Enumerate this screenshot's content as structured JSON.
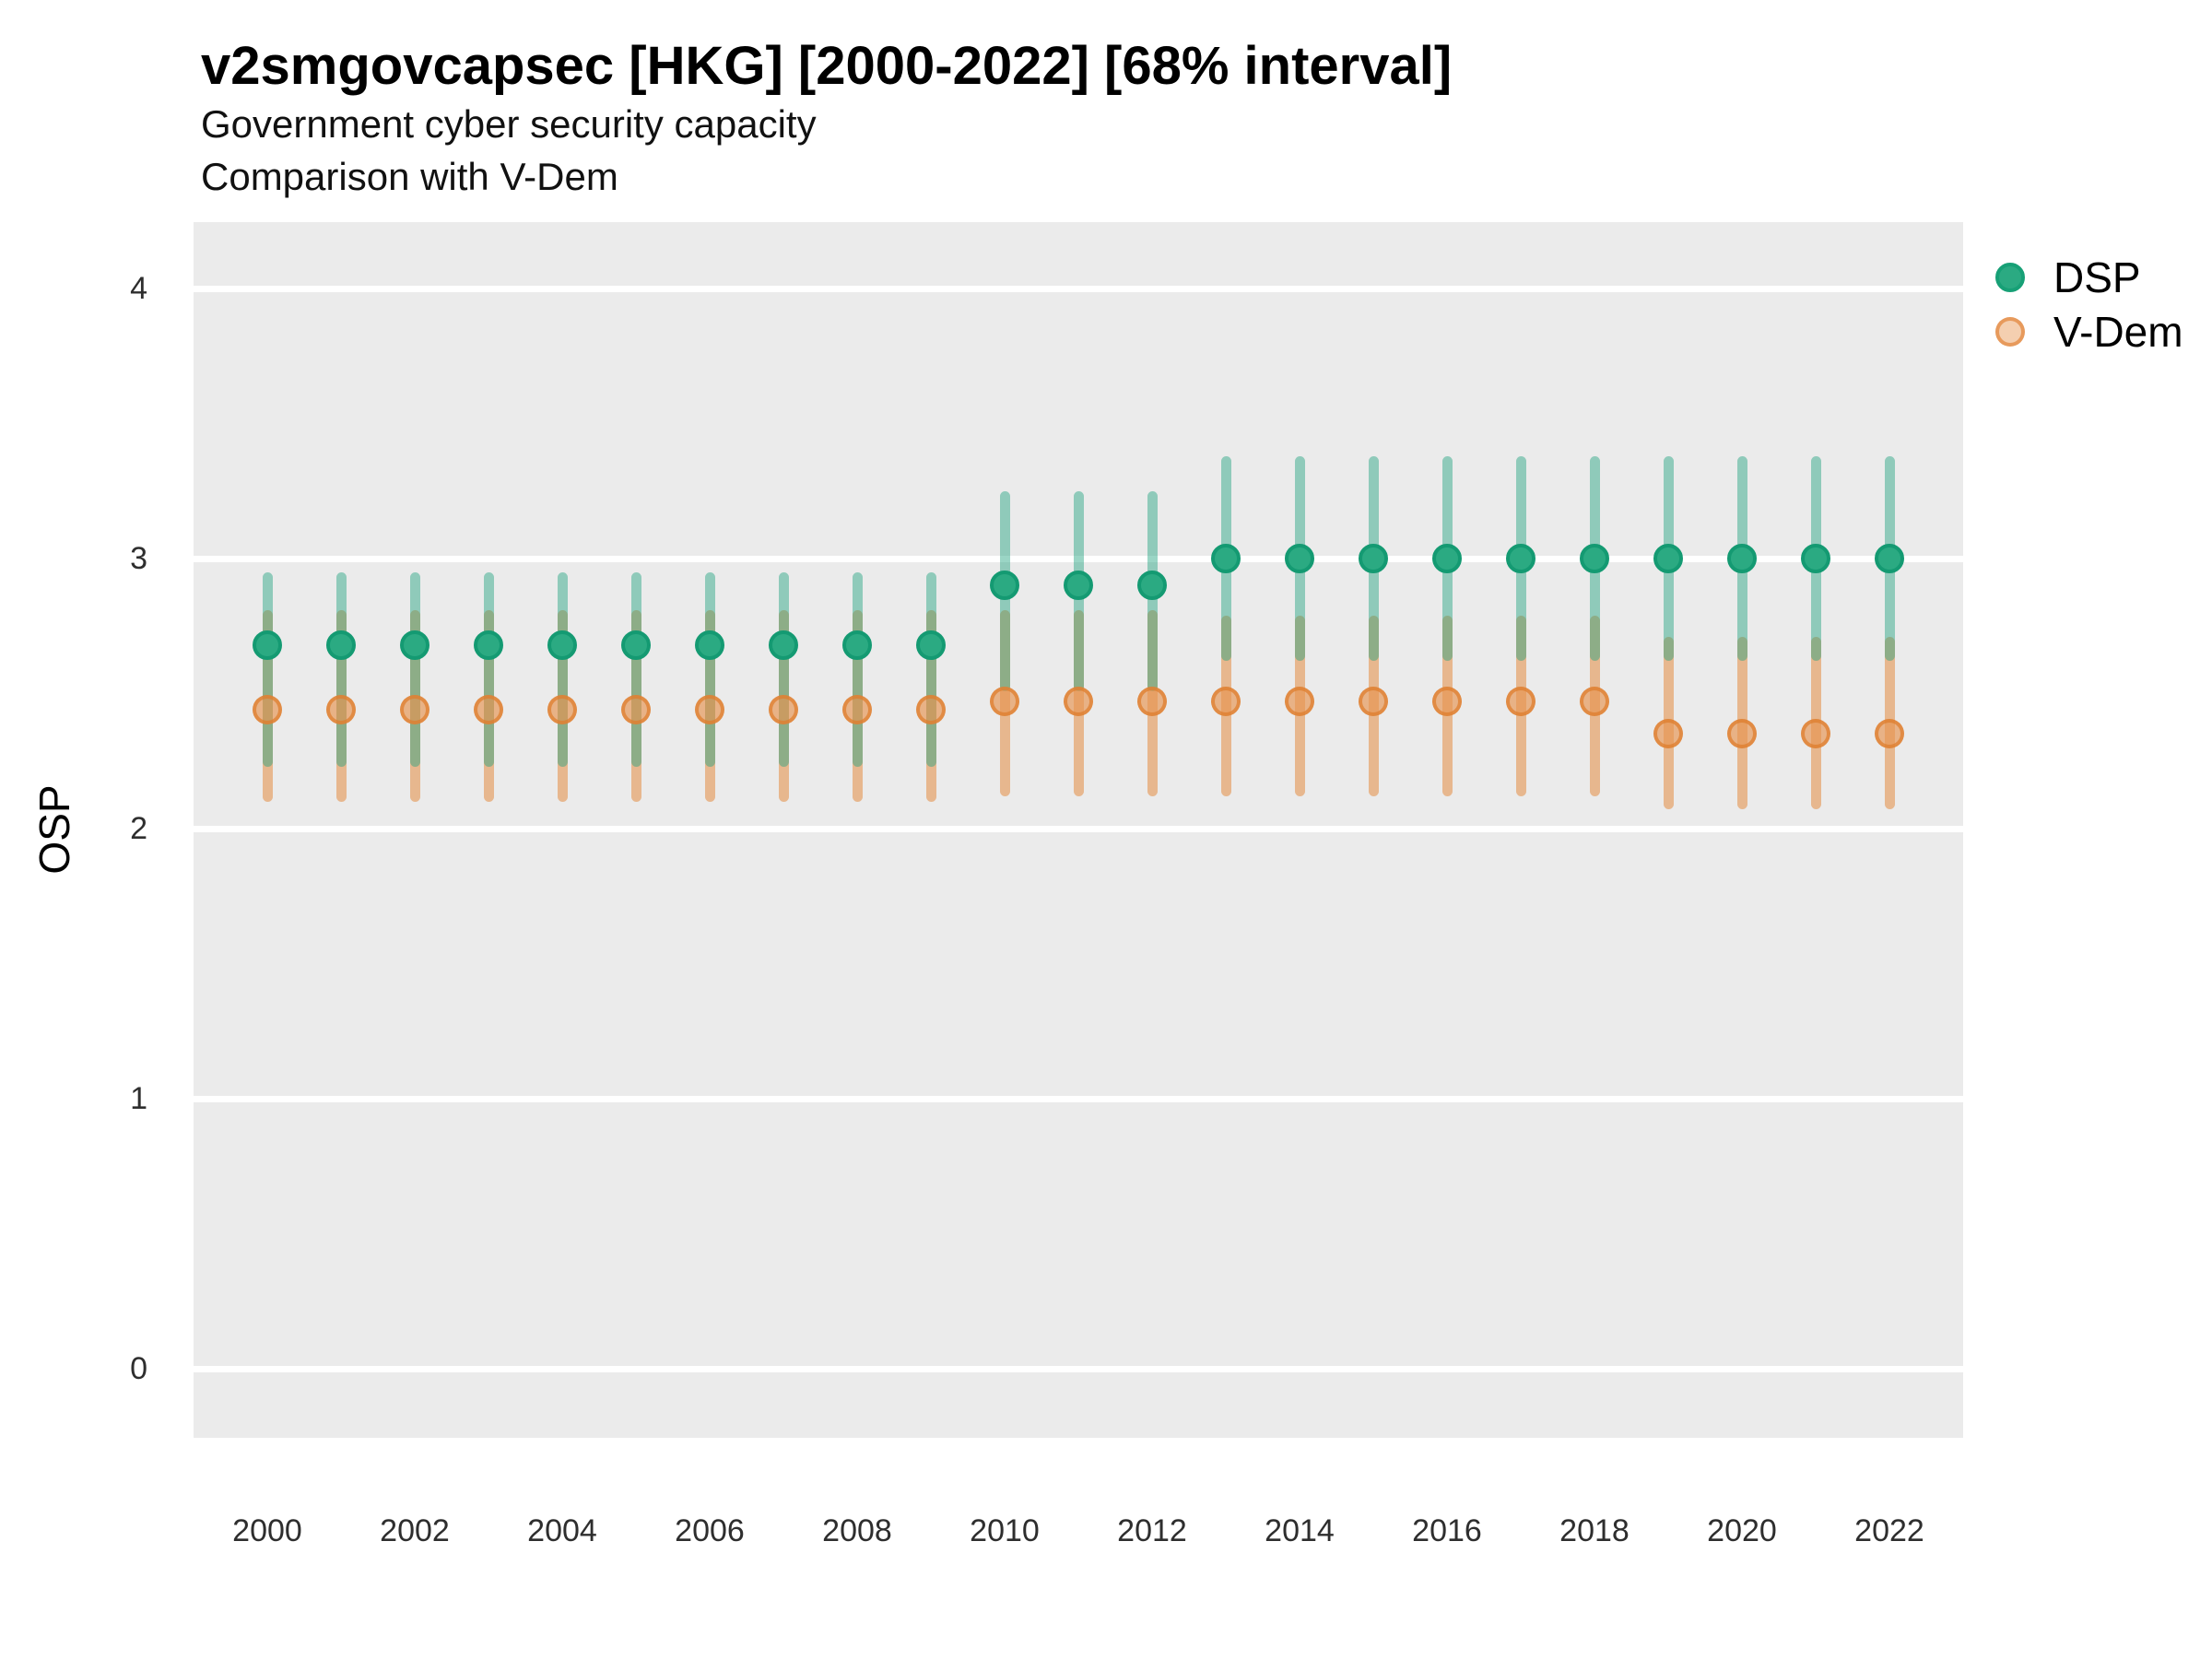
{
  "header": {
    "title": "v2smgovcapsec [HKG] [2000-2022] [68% interval]",
    "subtitle_line1": "Government cyber security capacity",
    "subtitle_line2": "Comparison with V-Dem"
  },
  "y_axis_label": "OSP",
  "legend": [
    {
      "label": "DSP",
      "dot_fill": "#2BAA82",
      "dot_border": "#17A076"
    },
    {
      "label": "V-Dem",
      "dot_fill": "rgba(231,148,80,0.45)",
      "dot_border": "rgba(224,126,48,0.65)"
    }
  ],
  "chart_data": {
    "type": "pointrange",
    "title": "v2smgovcapsec [HKG] [2000-2022] [68% interval]",
    "subtitle": "Government cyber security capacity / Comparison with V-Dem",
    "xlabel": "",
    "ylabel": "OSP",
    "interval": "68%",
    "x_ticks": [
      2000,
      2002,
      2004,
      2006,
      2008,
      2010,
      2012,
      2014,
      2016,
      2018,
      2020,
      2022
    ],
    "y_ticks": [
      0,
      1,
      2,
      3,
      4
    ],
    "xlim": [
      1999,
      2023
    ],
    "ylim": [
      -0.25,
      4.25
    ],
    "grid": "horizontal-white-on-gray",
    "legend_position": "right-top",
    "panel_background": "#EBEBEB",
    "series": [
      {
        "name": "V-Dem",
        "dot_fill": "rgba(231,148,80,0.65)",
        "dot_border": "rgba(222,125,45,0.75)",
        "bar_color": "rgba(227,140,66,0.55)",
        "points": [
          {
            "year": 2000,
            "value": 2.44,
            "lo": 2.1,
            "hi": 2.81
          },
          {
            "year": 2001,
            "value": 2.44,
            "lo": 2.1,
            "hi": 2.81
          },
          {
            "year": 2002,
            "value": 2.44,
            "lo": 2.1,
            "hi": 2.81
          },
          {
            "year": 2003,
            "value": 2.44,
            "lo": 2.1,
            "hi": 2.81
          },
          {
            "year": 2004,
            "value": 2.44,
            "lo": 2.1,
            "hi": 2.81
          },
          {
            "year": 2005,
            "value": 2.44,
            "lo": 2.1,
            "hi": 2.81
          },
          {
            "year": 2006,
            "value": 2.44,
            "lo": 2.1,
            "hi": 2.81
          },
          {
            "year": 2007,
            "value": 2.44,
            "lo": 2.1,
            "hi": 2.81
          },
          {
            "year": 2008,
            "value": 2.44,
            "lo": 2.1,
            "hi": 2.81
          },
          {
            "year": 2009,
            "value": 2.44,
            "lo": 2.1,
            "hi": 2.81
          },
          {
            "year": 2010,
            "value": 2.47,
            "lo": 2.12,
            "hi": 2.81
          },
          {
            "year": 2011,
            "value": 2.47,
            "lo": 2.12,
            "hi": 2.81
          },
          {
            "year": 2012,
            "value": 2.47,
            "lo": 2.12,
            "hi": 2.81
          },
          {
            "year": 2013,
            "value": 2.47,
            "lo": 2.12,
            "hi": 2.79
          },
          {
            "year": 2014,
            "value": 2.47,
            "lo": 2.12,
            "hi": 2.79
          },
          {
            "year": 2015,
            "value": 2.47,
            "lo": 2.12,
            "hi": 2.79
          },
          {
            "year": 2016,
            "value": 2.47,
            "lo": 2.12,
            "hi": 2.79
          },
          {
            "year": 2017,
            "value": 2.47,
            "lo": 2.12,
            "hi": 2.79
          },
          {
            "year": 2018,
            "value": 2.47,
            "lo": 2.12,
            "hi": 2.79
          },
          {
            "year": 2019,
            "value": 2.35,
            "lo": 2.07,
            "hi": 2.71
          },
          {
            "year": 2020,
            "value": 2.35,
            "lo": 2.07,
            "hi": 2.71
          },
          {
            "year": 2021,
            "value": 2.35,
            "lo": 2.07,
            "hi": 2.71
          },
          {
            "year": 2022,
            "value": 2.35,
            "lo": 2.07,
            "hi": 2.71
          }
        ]
      },
      {
        "name": "DSP",
        "dot_fill": "#2BAA82",
        "dot_border": "#149A72",
        "bar_color": "rgba(32,161,126,0.45)",
        "points": [
          {
            "year": 2000,
            "value": 2.68,
            "lo": 2.23,
            "hi": 2.95
          },
          {
            "year": 2001,
            "value": 2.68,
            "lo": 2.23,
            "hi": 2.95
          },
          {
            "year": 2002,
            "value": 2.68,
            "lo": 2.23,
            "hi": 2.95
          },
          {
            "year": 2003,
            "value": 2.68,
            "lo": 2.23,
            "hi": 2.95
          },
          {
            "year": 2004,
            "value": 2.68,
            "lo": 2.23,
            "hi": 2.95
          },
          {
            "year": 2005,
            "value": 2.68,
            "lo": 2.23,
            "hi": 2.95
          },
          {
            "year": 2006,
            "value": 2.68,
            "lo": 2.23,
            "hi": 2.95
          },
          {
            "year": 2007,
            "value": 2.68,
            "lo": 2.23,
            "hi": 2.95
          },
          {
            "year": 2008,
            "value": 2.68,
            "lo": 2.23,
            "hi": 2.95
          },
          {
            "year": 2009,
            "value": 2.68,
            "lo": 2.23,
            "hi": 2.95
          },
          {
            "year": 2010,
            "value": 2.9,
            "lo": 2.51,
            "hi": 3.25
          },
          {
            "year": 2011,
            "value": 2.9,
            "lo": 2.51,
            "hi": 3.25
          },
          {
            "year": 2012,
            "value": 2.9,
            "lo": 2.51,
            "hi": 3.25
          },
          {
            "year": 2013,
            "value": 3.0,
            "lo": 2.62,
            "hi": 3.38
          },
          {
            "year": 2014,
            "value": 3.0,
            "lo": 2.62,
            "hi": 3.38
          },
          {
            "year": 2015,
            "value": 3.0,
            "lo": 2.62,
            "hi": 3.38
          },
          {
            "year": 2016,
            "value": 3.0,
            "lo": 2.62,
            "hi": 3.38
          },
          {
            "year": 2017,
            "value": 3.0,
            "lo": 2.62,
            "hi": 3.38
          },
          {
            "year": 2018,
            "value": 3.0,
            "lo": 2.62,
            "hi": 3.38
          },
          {
            "year": 2019,
            "value": 3.0,
            "lo": 2.62,
            "hi": 3.38
          },
          {
            "year": 2020,
            "value": 3.0,
            "lo": 2.62,
            "hi": 3.38
          },
          {
            "year": 2021,
            "value": 3.0,
            "lo": 2.62,
            "hi": 3.38
          },
          {
            "year": 2022,
            "value": 3.0,
            "lo": 2.62,
            "hi": 3.38
          }
        ]
      }
    ]
  }
}
